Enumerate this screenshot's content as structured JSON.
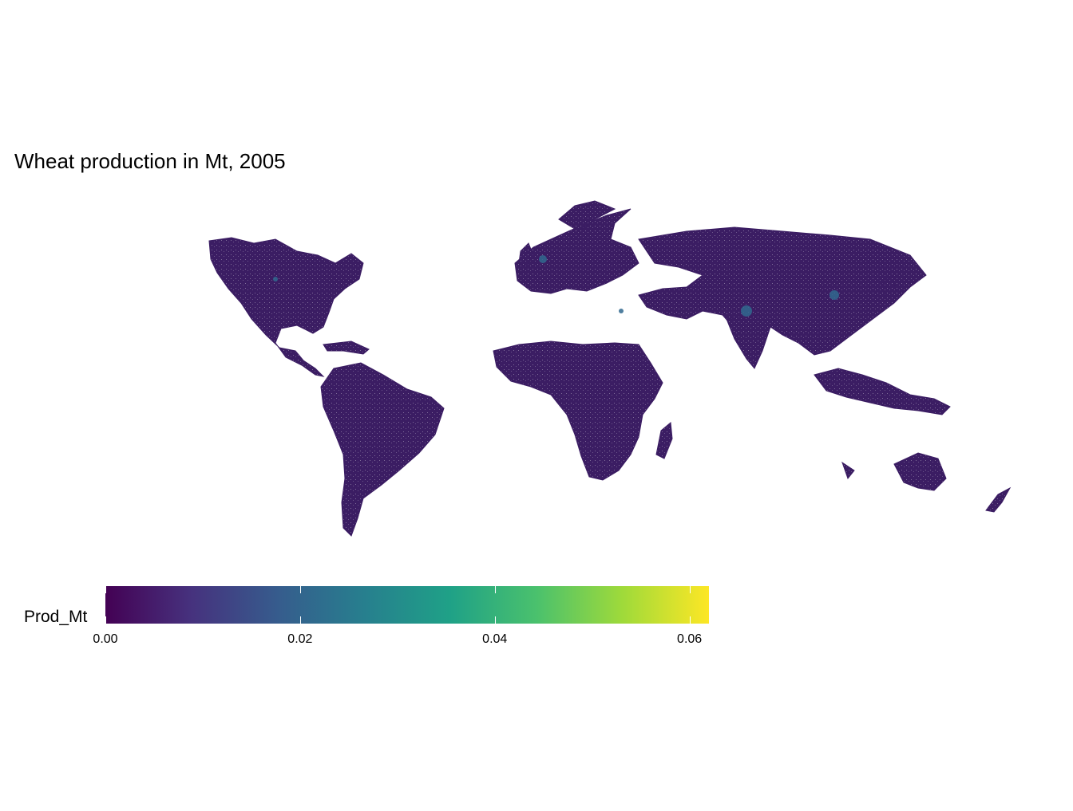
{
  "title": "Wheat production in Mt, 2005",
  "legend": {
    "title": "Prod_Mt",
    "min": 0,
    "max": 0.062,
    "ticks": [
      {
        "value": 0.0,
        "label": "0.00"
      },
      {
        "value": 0.02,
        "label": "0.02"
      },
      {
        "value": 0.04,
        "label": "0.04"
      },
      {
        "value": 0.06,
        "label": "0.06"
      }
    ],
    "palette": [
      "#440154",
      "#46327e",
      "#365c8d",
      "#277f8e",
      "#1fa187",
      "#4ac16d",
      "#9fda3a",
      "#fde725"
    ]
  },
  "colors": {
    "land": "#3b1d63",
    "land_dense": "#452170",
    "hotspot": "#31688e",
    "background": "#ffffff"
  }
}
